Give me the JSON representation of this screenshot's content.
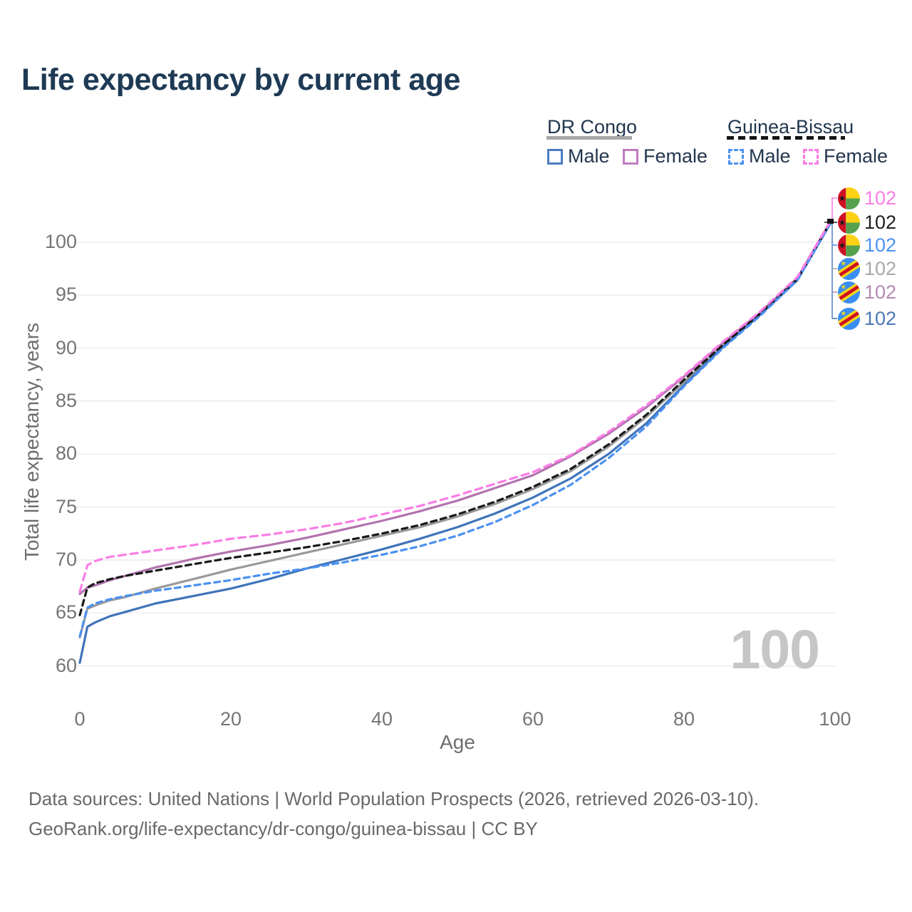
{
  "title": "Life expectancy by current age",
  "legend": {
    "group1": {
      "name": "DR Congo",
      "male": "Male",
      "female": "Female",
      "line_color": "#a8a8a8",
      "male_color": "#4b7cc3",
      "female_color": "#bf7cbf"
    },
    "group2": {
      "name": "Guinea-Bissau",
      "male": "Male",
      "female": "Female",
      "line_color": "#151515",
      "male_color": "#4b91f2",
      "female_color": "#fb7de6"
    }
  },
  "watermark": "100",
  "footer": {
    "line1": "Data sources: United Nations | World Population Prospects (2026, retrieved 2026-03-10).",
    "line2": "GeoRank.org/life-expectancy/dr-congo/guinea-bissau | CC BY"
  },
  "chart_data": {
    "type": "line",
    "title": "Life expectancy by current age",
    "xlabel": "Age",
    "ylabel": "Total life expectancy, years",
    "xlim": [
      0,
      100
    ],
    "ylim": [
      58,
      104
    ],
    "x_ticks": [
      0,
      20,
      40,
      60,
      80,
      100
    ],
    "y_ticks": [
      60,
      65,
      70,
      75,
      80,
      85,
      90,
      95,
      100
    ],
    "grid": "horizontal-only",
    "legend_position": "top-right",
    "series": [
      {
        "name": "DR Congo Total",
        "country": "DR Congo",
        "sex": "both",
        "color": "#9a9a9a",
        "style": "solid",
        "dash": "",
        "points": [
          [
            0,
            62.7
          ],
          [
            1,
            65.4
          ],
          [
            2,
            65.7
          ],
          [
            4,
            66.2
          ],
          [
            6,
            66.5
          ],
          [
            10,
            67.3
          ],
          [
            15,
            68.2
          ],
          [
            20,
            69.1
          ],
          [
            25,
            69.9
          ],
          [
            30,
            70.7
          ],
          [
            35,
            71.5
          ],
          [
            40,
            72.3
          ],
          [
            45,
            73.1
          ],
          [
            50,
            74.1
          ],
          [
            55,
            75.3
          ],
          [
            60,
            76.7
          ],
          [
            65,
            78.4
          ],
          [
            70,
            80.7
          ],
          [
            75,
            83.5
          ],
          [
            80,
            86.8
          ],
          [
            85,
            90.1
          ],
          [
            90,
            93.1
          ],
          [
            95,
            96.4
          ],
          [
            99.5,
            101.95
          ]
        ]
      },
      {
        "name": "DR Congo Female",
        "country": "DR Congo",
        "sex": "female",
        "color": "#b273ae",
        "style": "solid",
        "dash": "",
        "points": [
          [
            0,
            66.8
          ],
          [
            1,
            67.4
          ],
          [
            2,
            67.6
          ],
          [
            4,
            68.1
          ],
          [
            6,
            68.5
          ],
          [
            10,
            69.3
          ],
          [
            15,
            70.1
          ],
          [
            20,
            70.8
          ],
          [
            25,
            71.4
          ],
          [
            30,
            72.1
          ],
          [
            35,
            72.9
          ],
          [
            40,
            73.7
          ],
          [
            45,
            74.6
          ],
          [
            50,
            75.6
          ],
          [
            55,
            76.8
          ],
          [
            60,
            78.0
          ],
          [
            65,
            79.8
          ],
          [
            70,
            81.9
          ],
          [
            75,
            84.4
          ],
          [
            80,
            87.3
          ],
          [
            85,
            90.4
          ],
          [
            90,
            93.3
          ],
          [
            95,
            96.6
          ],
          [
            99.5,
            102.05
          ]
        ]
      },
      {
        "name": "DR Congo Male",
        "country": "DR Congo",
        "sex": "male",
        "color": "#3f74ba",
        "style": "solid",
        "dash": "",
        "points": [
          [
            0,
            60.3
          ],
          [
            1,
            63.7
          ],
          [
            2,
            64.1
          ],
          [
            4,
            64.7
          ],
          [
            6,
            65.1
          ],
          [
            10,
            65.9
          ],
          [
            15,
            66.6
          ],
          [
            20,
            67.3
          ],
          [
            25,
            68.2
          ],
          [
            30,
            69.2
          ],
          [
            35,
            70.1
          ],
          [
            40,
            71.0
          ],
          [
            45,
            72.0
          ],
          [
            50,
            73.1
          ],
          [
            55,
            74.4
          ],
          [
            60,
            75.9
          ],
          [
            65,
            77.7
          ],
          [
            70,
            80.0
          ],
          [
            75,
            82.9
          ],
          [
            80,
            86.5
          ],
          [
            85,
            90.0
          ],
          [
            90,
            93.1
          ],
          [
            95,
            96.4
          ],
          [
            99.5,
            101.9
          ]
        ]
      },
      {
        "name": "Guinea-Bissau Total",
        "country": "Guinea-Bissau",
        "sex": "both",
        "color": "#1a1a1a",
        "style": "dashed",
        "dash": "8 6",
        "points": [
          [
            0,
            64.8
          ],
          [
            1,
            67.4
          ],
          [
            2,
            67.8
          ],
          [
            4,
            68.2
          ],
          [
            6,
            68.5
          ],
          [
            10,
            69.0
          ],
          [
            15,
            69.6
          ],
          [
            20,
            70.2
          ],
          [
            25,
            70.7
          ],
          [
            30,
            71.2
          ],
          [
            35,
            71.8
          ],
          [
            40,
            72.5
          ],
          [
            45,
            73.3
          ],
          [
            50,
            74.3
          ],
          [
            55,
            75.5
          ],
          [
            60,
            76.9
          ],
          [
            65,
            78.6
          ],
          [
            70,
            80.9
          ],
          [
            75,
            83.7
          ],
          [
            80,
            87.0
          ],
          [
            85,
            90.2
          ],
          [
            90,
            93.2
          ],
          [
            95,
            96.5
          ],
          [
            99.5,
            102.0
          ]
        ]
      },
      {
        "name": "Guinea-Bissau Male",
        "country": "Guinea-Bissau",
        "sex": "male",
        "color": "#4b91f2",
        "style": "dashed",
        "dash": "8 6",
        "points": [
          [
            0,
            62.8
          ],
          [
            1,
            65.5
          ],
          [
            2,
            65.9
          ],
          [
            4,
            66.3
          ],
          [
            6,
            66.6
          ],
          [
            10,
            67.1
          ],
          [
            15,
            67.6
          ],
          [
            20,
            68.1
          ],
          [
            25,
            68.7
          ],
          [
            30,
            69.2
          ],
          [
            35,
            69.8
          ],
          [
            40,
            70.5
          ],
          [
            45,
            71.3
          ],
          [
            50,
            72.3
          ],
          [
            55,
            73.6
          ],
          [
            60,
            75.2
          ],
          [
            65,
            77.1
          ],
          [
            70,
            79.6
          ],
          [
            75,
            82.6
          ],
          [
            80,
            86.4
          ],
          [
            85,
            89.9
          ],
          [
            90,
            93.0
          ],
          [
            95,
            96.4
          ],
          [
            99.5,
            101.9
          ]
        ]
      },
      {
        "name": "Guinea-Bissau Female",
        "country": "Guinea-Bissau",
        "sex": "female",
        "color": "#fb7de6",
        "style": "dashed",
        "dash": "10 7",
        "points": [
          [
            0,
            67.0
          ],
          [
            1,
            69.5
          ],
          [
            2,
            69.9
          ],
          [
            4,
            70.3
          ],
          [
            6,
            70.5
          ],
          [
            10,
            70.9
          ],
          [
            15,
            71.4
          ],
          [
            20,
            72.0
          ],
          [
            25,
            72.4
          ],
          [
            30,
            72.9
          ],
          [
            35,
            73.5
          ],
          [
            40,
            74.3
          ],
          [
            45,
            75.1
          ],
          [
            50,
            76.1
          ],
          [
            55,
            77.2
          ],
          [
            60,
            78.3
          ],
          [
            65,
            79.9
          ],
          [
            70,
            82.1
          ],
          [
            75,
            84.6
          ],
          [
            80,
            87.4
          ],
          [
            85,
            90.5
          ],
          [
            90,
            93.4
          ],
          [
            95,
            96.7
          ],
          [
            99.5,
            102.1
          ]
        ]
      }
    ],
    "end_labels": [
      {
        "text": "102",
        "country": "Guinea-Bissau",
        "series": "Female",
        "color": "#fb7de6"
      },
      {
        "text": "102",
        "country": "Guinea-Bissau",
        "series": "Total",
        "color": "#1f1f1f"
      },
      {
        "text": "102",
        "country": "Guinea-Bissau",
        "series": "Male",
        "color": "#4b91f2"
      },
      {
        "text": "102",
        "country": "DR Congo",
        "series": "Total",
        "color": "#a9a9a9"
      },
      {
        "text": "102",
        "country": "DR Congo",
        "series": "Female",
        "color": "#b48ab4"
      },
      {
        "text": "102",
        "country": "DR Congo",
        "series": "Male",
        "color": "#4a77b4"
      }
    ]
  }
}
